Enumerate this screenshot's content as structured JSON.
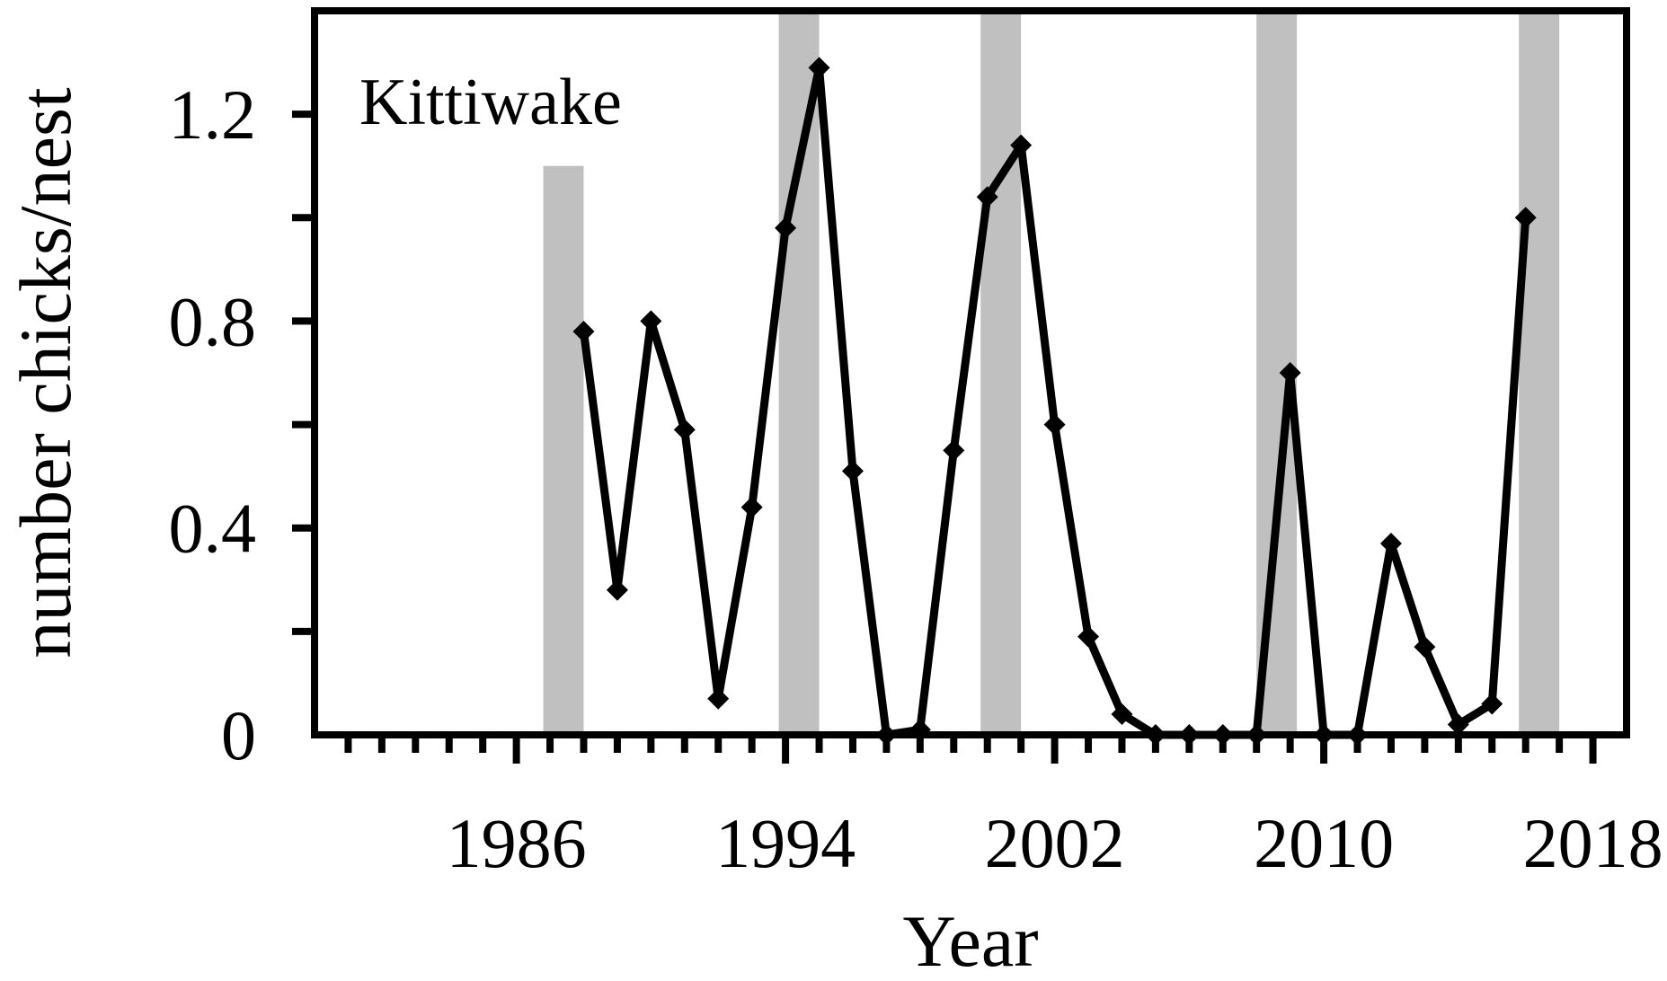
{
  "chart_data": {
    "type": "line",
    "panel_label": "Kittiwake",
    "xlabel": "Year",
    "ylabel": "number chicks/nest",
    "xlim": [
      1980,
      2019
    ],
    "ylim": [
      0,
      1.4
    ],
    "x_tick_labels": [
      "1986",
      "1994",
      "2002",
      "2010",
      "2018"
    ],
    "x_major_ticks": [
      1986,
      1994,
      2002,
      2010,
      2018
    ],
    "y_tick_labels": [
      "0",
      "0.4",
      "0.8",
      "1.2"
    ],
    "y_major_ticks": [
      0,
      0.4,
      0.8,
      1.2
    ],
    "line_color": "#000000",
    "shade_color": "#c0c0c0",
    "shaded_years": [
      {
        "start": 1986.8,
        "end": 1988.0,
        "top": 1.1
      },
      {
        "start": 1993.8,
        "end": 1995.0,
        "top": 1.4
      },
      {
        "start": 1999.8,
        "end": 2001.0,
        "top": 1.4
      },
      {
        "start": 2008.0,
        "end": 2009.2,
        "top": 1.4
      },
      {
        "start": 2015.8,
        "end": 2017.0,
        "top": 1.4
      }
    ],
    "series": [
      {
        "x": [
          1988,
          1989,
          1990,
          1991,
          1992,
          1993,
          1994,
          1995,
          1996,
          1997,
          1998,
          1999,
          2000,
          2001,
          2002,
          2003,
          2004,
          2005,
          2006,
          2007,
          2008,
          2009,
          2010,
          2011,
          2012,
          2013,
          2014,
          2015,
          2016
        ],
        "values": [
          0.78,
          0.28,
          0.8,
          0.59,
          0.07,
          0.44,
          0.98,
          1.29,
          0.51,
          0.0,
          0.01,
          0.55,
          1.04,
          1.14,
          0.6,
          0.19,
          0.04,
          0.0,
          0.0,
          0.0,
          0.0,
          0.7,
          0.0,
          0.0,
          0.37,
          0.17,
          0.02,
          0.06,
          1.0
        ]
      }
    ]
  }
}
